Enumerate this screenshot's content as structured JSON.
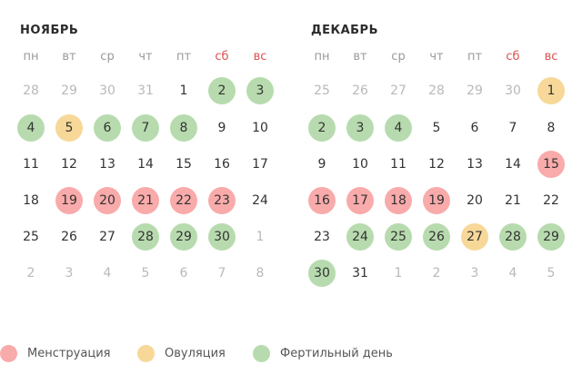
{
  "colors": {
    "menstruation": "#f9aaaa",
    "ovulation": "#f7d898",
    "fertile": "#b7dbae",
    "weekend_header": "#d9534f",
    "muted_text": "#b9b9b9"
  },
  "weekdays": [
    {
      "label": "пн",
      "weekend": false
    },
    {
      "label": "вт",
      "weekend": false
    },
    {
      "label": "ср",
      "weekend": false
    },
    {
      "label": "чт",
      "weekend": false
    },
    {
      "label": "пт",
      "weekend": false
    },
    {
      "label": "сб",
      "weekend": true
    },
    {
      "label": "вс",
      "weekend": true
    }
  ],
  "months": [
    {
      "title": "НОЯБРЬ",
      "weeks": [
        [
          {
            "d": "28",
            "m": 1
          },
          {
            "d": "29",
            "m": 1
          },
          {
            "d": "30",
            "m": 1
          },
          {
            "d": "31",
            "m": 1
          },
          {
            "d": "1"
          },
          {
            "d": "2",
            "t": "fertile"
          },
          {
            "d": "3",
            "t": "fertile"
          }
        ],
        [
          {
            "d": "4",
            "t": "fertile"
          },
          {
            "d": "5",
            "t": "ovulation"
          },
          {
            "d": "6",
            "t": "fertile"
          },
          {
            "d": "7",
            "t": "fertile"
          },
          {
            "d": "8",
            "t": "fertile"
          },
          {
            "d": "9"
          },
          {
            "d": "10"
          }
        ],
        [
          {
            "d": "11"
          },
          {
            "d": "12"
          },
          {
            "d": "13"
          },
          {
            "d": "14"
          },
          {
            "d": "15"
          },
          {
            "d": "16"
          },
          {
            "d": "17"
          }
        ],
        [
          {
            "d": "18"
          },
          {
            "d": "19",
            "t": "menstruation"
          },
          {
            "d": "20",
            "t": "menstruation"
          },
          {
            "d": "21",
            "t": "menstruation"
          },
          {
            "d": "22",
            "t": "menstruation"
          },
          {
            "d": "23",
            "t": "menstruation"
          },
          {
            "d": "24"
          }
        ],
        [
          {
            "d": "25"
          },
          {
            "d": "26"
          },
          {
            "d": "27"
          },
          {
            "d": "28",
            "t": "fertile"
          },
          {
            "d": "29",
            "t": "fertile"
          },
          {
            "d": "30",
            "t": "fertile"
          },
          {
            "d": "1",
            "m": 1
          }
        ],
        [
          {
            "d": "2",
            "m": 1
          },
          {
            "d": "3",
            "m": 1
          },
          {
            "d": "4",
            "m": 1
          },
          {
            "d": "5",
            "m": 1
          },
          {
            "d": "6",
            "m": 1
          },
          {
            "d": "7",
            "m": 1
          },
          {
            "d": "8",
            "m": 1
          }
        ]
      ]
    },
    {
      "title": "ДЕКАБРЬ",
      "weeks": [
        [
          {
            "d": "25",
            "m": 1
          },
          {
            "d": "26",
            "m": 1
          },
          {
            "d": "27",
            "m": 1
          },
          {
            "d": "28",
            "m": 1
          },
          {
            "d": "29",
            "m": 1
          },
          {
            "d": "30",
            "m": 1
          },
          {
            "d": "1",
            "t": "ovulation"
          }
        ],
        [
          {
            "d": "2",
            "t": "fertile"
          },
          {
            "d": "3",
            "t": "fertile"
          },
          {
            "d": "4",
            "t": "fertile"
          },
          {
            "d": "5"
          },
          {
            "d": "6"
          },
          {
            "d": "7"
          },
          {
            "d": "8"
          }
        ],
        [
          {
            "d": "9"
          },
          {
            "d": "10"
          },
          {
            "d": "11"
          },
          {
            "d": "12"
          },
          {
            "d": "13"
          },
          {
            "d": "14"
          },
          {
            "d": "15",
            "t": "menstruation"
          }
        ],
        [
          {
            "d": "16",
            "t": "menstruation"
          },
          {
            "d": "17",
            "t": "menstruation"
          },
          {
            "d": "18",
            "t": "menstruation"
          },
          {
            "d": "19",
            "t": "menstruation"
          },
          {
            "d": "20"
          },
          {
            "d": "21"
          },
          {
            "d": "22"
          }
        ],
        [
          {
            "d": "23"
          },
          {
            "d": "24",
            "t": "fertile"
          },
          {
            "d": "25",
            "t": "fertile"
          },
          {
            "d": "26",
            "t": "fertile"
          },
          {
            "d": "27",
            "t": "ovulation"
          },
          {
            "d": "28",
            "t": "fertile"
          },
          {
            "d": "29",
            "t": "fertile"
          }
        ],
        [
          {
            "d": "30",
            "t": "fertile"
          },
          {
            "d": "31"
          },
          {
            "d": "1",
            "m": 1
          },
          {
            "d": "2",
            "m": 1
          },
          {
            "d": "3",
            "m": 1
          },
          {
            "d": "4",
            "m": 1
          },
          {
            "d": "5",
            "m": 1
          }
        ]
      ]
    }
  ],
  "legend": [
    {
      "key": "menstruation",
      "label": "Менструация"
    },
    {
      "key": "ovulation",
      "label": "Овуляция"
    },
    {
      "key": "fertile",
      "label": "Фертильный день"
    }
  ]
}
